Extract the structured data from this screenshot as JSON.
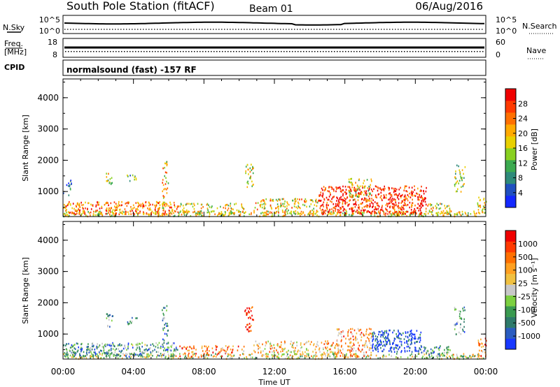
{
  "header": {
    "station": "South Pole Station (fitACF)",
    "beam": "Beam 01",
    "date": "06/Aug/2016"
  },
  "strips": {
    "nsky": {
      "label": "N.Sky",
      "left_ticks": [
        "10^5",
        "10^0"
      ],
      "right_label": "N.Search",
      "right_ticks": [
        "10^5",
        "10^0"
      ]
    },
    "freq": {
      "label": "Freq.",
      "unit": "[MHz]",
      "left_ticks": [
        "18",
        "8"
      ],
      "right_label": "Nave",
      "right_ticks": [
        "60",
        "0"
      ]
    },
    "cpid": {
      "label": "CPID",
      "text": "normalsound (fast) -157 RF"
    }
  },
  "chart_data": [
    {
      "type": "heatmap",
      "name": "power",
      "ylabel": "Slant Range [km]",
      "xlabel": "Time UT",
      "ylim": [
        200,
        4600
      ],
      "yticks": [
        1000,
        2000,
        3000,
        4000
      ],
      "xticks": [
        "00:00",
        "04:00",
        "08:00",
        "12:00",
        "16:00",
        "20:00",
        "00:00"
      ],
      "colorbar": {
        "label": "Power [dB]",
        "ticks": [
          "4",
          "8",
          "12",
          "16",
          "20",
          "24",
          "28"
        ],
        "colors": [
          "#1428ff",
          "#2050c0",
          "#2e8a7a",
          "#3caa50",
          "#88d020",
          "#e8d000",
          "#ffaa00",
          "#ff7000",
          "#ff3a00",
          "#f00000"
        ]
      },
      "scatter_regions": [
        {
          "t0": 0.0,
          "t1": 24.0,
          "r0": 230,
          "r1": 400,
          "level": 0.55,
          "density": 0.5
        },
        {
          "t0": 0.0,
          "t1": 6.5,
          "r0": 300,
          "r1": 700,
          "level": 0.75,
          "density": 0.55
        },
        {
          "t0": 0.0,
          "t1": 0.5,
          "r0": 900,
          "r1": 1450,
          "level": 0.2,
          "density": 0.25
        },
        {
          "t0": 2.4,
          "t1": 2.8,
          "r0": 1250,
          "r1": 1700,
          "level": 0.5,
          "density": 0.4
        },
        {
          "t0": 3.6,
          "t1": 4.2,
          "r0": 1300,
          "r1": 1550,
          "level": 0.4,
          "density": 0.35
        },
        {
          "t0": 5.6,
          "t1": 5.95,
          "r0": 500,
          "r1": 2000,
          "level": 0.6,
          "density": 0.35
        },
        {
          "t0": 6.5,
          "t1": 10.3,
          "r0": 300,
          "r1": 650,
          "level": 0.55,
          "density": 0.35
        },
        {
          "t0": 10.3,
          "t1": 10.8,
          "r0": 1100,
          "r1": 1900,
          "level": 0.55,
          "density": 0.4
        },
        {
          "t0": 10.8,
          "t1": 14.5,
          "r0": 300,
          "r1": 800,
          "level": 0.6,
          "density": 0.4
        },
        {
          "t0": 14.5,
          "t1": 20.6,
          "r0": 300,
          "r1": 1200,
          "level": 0.9,
          "density": 0.55
        },
        {
          "t0": 16.2,
          "t1": 17.5,
          "r0": 700,
          "r1": 1450,
          "level": 0.5,
          "density": 0.35
        },
        {
          "t0": 20.6,
          "t1": 22.0,
          "r0": 300,
          "r1": 650,
          "level": 0.5,
          "density": 0.4
        },
        {
          "t0": 22.2,
          "t1": 22.8,
          "r0": 1000,
          "r1": 1900,
          "level": 0.45,
          "density": 0.35
        },
        {
          "t0": 23.5,
          "t1": 24.0,
          "r0": 300,
          "r1": 900,
          "level": 0.55,
          "density": 0.4
        }
      ]
    },
    {
      "type": "heatmap",
      "name": "velocity",
      "ylabel": "Slant Range [km]",
      "xlabel": "Time UT",
      "ylim": [
        200,
        4600
      ],
      "yticks": [
        1000,
        2000,
        3000,
        4000
      ],
      "xticks": [
        "00:00",
        "04:00",
        "08:00",
        "12:00",
        "16:00",
        "20:00",
        "00:00"
      ],
      "colorbar": {
        "label": "Velocity [m s⁻¹]",
        "ticks": [
          "1000",
          "500",
          "100",
          "25",
          "-25",
          "-100",
          "-500",
          "-1000"
        ],
        "colors": [
          "#1838ff",
          "#2a5cc0",
          "#2e7a6a",
          "#3a9a50",
          "#7cd040",
          "#c8c8c8",
          "#f0c040",
          "#ffa020",
          "#ff7000",
          "#ff3a00",
          "#f00000"
        ]
      },
      "scatter_regions": [
        {
          "t0": 0.0,
          "t1": 24.0,
          "r0": 230,
          "r1": 400,
          "level": 0.5,
          "density": 0.45
        },
        {
          "t0": 0.0,
          "t1": 6.5,
          "r0": 300,
          "r1": 750,
          "level": 0.3,
          "density": 0.55
        },
        {
          "t0": 2.4,
          "t1": 2.8,
          "r0": 1250,
          "r1": 1700,
          "level": 0.3,
          "density": 0.4
        },
        {
          "t0": 3.6,
          "t1": 4.2,
          "r0": 1300,
          "r1": 1550,
          "level": 0.3,
          "density": 0.35
        },
        {
          "t0": 5.6,
          "t1": 5.95,
          "r0": 500,
          "r1": 2000,
          "level": 0.3,
          "density": 0.35
        },
        {
          "t0": 6.5,
          "t1": 10.3,
          "r0": 300,
          "r1": 650,
          "level": 0.75,
          "density": 0.35
        },
        {
          "t0": 10.3,
          "t1": 10.8,
          "r0": 1100,
          "r1": 1900,
          "level": 0.85,
          "density": 0.45
        },
        {
          "t0": 10.8,
          "t1": 15.5,
          "r0": 300,
          "r1": 800,
          "level": 0.6,
          "density": 0.4
        },
        {
          "t0": 15.5,
          "t1": 17.5,
          "r0": 300,
          "r1": 1200,
          "level": 0.7,
          "density": 0.45
        },
        {
          "t0": 17.5,
          "t1": 20.3,
          "r0": 450,
          "r1": 1150,
          "level": 0.05,
          "density": 0.6
        },
        {
          "t0": 20.3,
          "t1": 22.0,
          "r0": 300,
          "r1": 650,
          "level": 0.25,
          "density": 0.45
        },
        {
          "t0": 22.2,
          "t1": 22.8,
          "r0": 1000,
          "r1": 1900,
          "level": 0.3,
          "density": 0.35
        },
        {
          "t0": 23.5,
          "t1": 24.0,
          "r0": 300,
          "r1": 900,
          "level": 0.75,
          "density": 0.4
        }
      ]
    }
  ]
}
